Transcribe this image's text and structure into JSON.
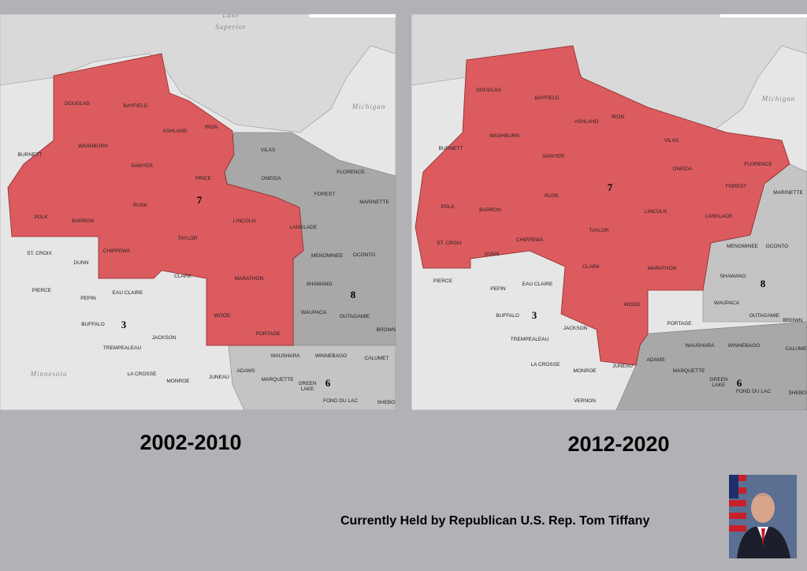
{
  "maps": [
    {
      "period": "2002-2010",
      "water_labels": [
        "Lake",
        "Superior",
        "Michigan",
        "Minnesota"
      ],
      "district_numbers": [
        "7",
        "3",
        "8",
        "6"
      ],
      "counties": [
        "DOUGLAS",
        "BAYFIELD",
        "ASHLAND",
        "IRON",
        "WASHBURN",
        "BURNETT",
        "SAWYER",
        "PRICE",
        "VILAS",
        "ONEIDA",
        "FLORENCE",
        "FOREST",
        "MARINETTE",
        "POLK",
        "BARRON",
        "RUSK",
        "LINCOLN",
        "LANGLADE",
        "TAYLOR",
        "CHIPPEWA",
        "MENOMINEE",
        "OCONTO",
        "ST. CROIX",
        "DUNN",
        "CLARK",
        "MARATHON",
        "SHAWANO",
        "PIERCE",
        "PEPIN",
        "EAU CLAIRE",
        "WAUPACA",
        "OUTAGAMIE",
        "BUFFALO",
        "JACKSON",
        "WOOD",
        "PORTAGE",
        "TREMPEALEAU",
        "WAUSHARA",
        "WINNEBAGO",
        "ADAMS",
        "MARQUETTE",
        "LA CROSSE",
        "MONROE",
        "JUNEAU",
        "GREEN",
        "LAKE",
        "FOND DU LAC",
        "CALUMET",
        "BROWN",
        "SHEBOY"
      ]
    },
    {
      "period": "2012-2020",
      "water_labels": [
        "Michigan"
      ],
      "district_numbers": [
        "7",
        "3",
        "8",
        "6"
      ],
      "counties": [
        "DOUGLAS",
        "BAYFIELD",
        "ASHLAND",
        "IRON",
        "WASHBURN",
        "BURNETT",
        "SAWYER",
        "VILAS",
        "ONEIDA",
        "FLORENCE",
        "FOREST",
        "MARINETTE",
        "POLK",
        "BARRON",
        "RUSK",
        "LINCOLN",
        "LANGLADE",
        "TAYLOR",
        "CHIPPEWA",
        "MENOMINEE",
        "OCONTO",
        "ST. CROIX",
        "DUNN",
        "CLARK",
        "MARATHON",
        "SHAWANO",
        "PIERCE",
        "PEPIN",
        "EAU CLAIRE",
        "WAUPACA",
        "OUTAGAMIE",
        "BROWN",
        "BUFFALO",
        "JACKSON",
        "WOOD",
        "PORTAGE",
        "TREMPEALEAU",
        "WAUSHARA",
        "WINNEBAGO",
        "CALUMET",
        "ADAMS",
        "MARQUETTE",
        "LA CROSSE",
        "MONROE",
        "JUNEAU",
        "GREEN",
        "LAKE",
        "FOND DU LAC",
        "VERNON",
        "SHEBOY"
      ]
    }
  ],
  "caption": "Currently Held by Republican U.S. Rep. Tom Tiffany"
}
